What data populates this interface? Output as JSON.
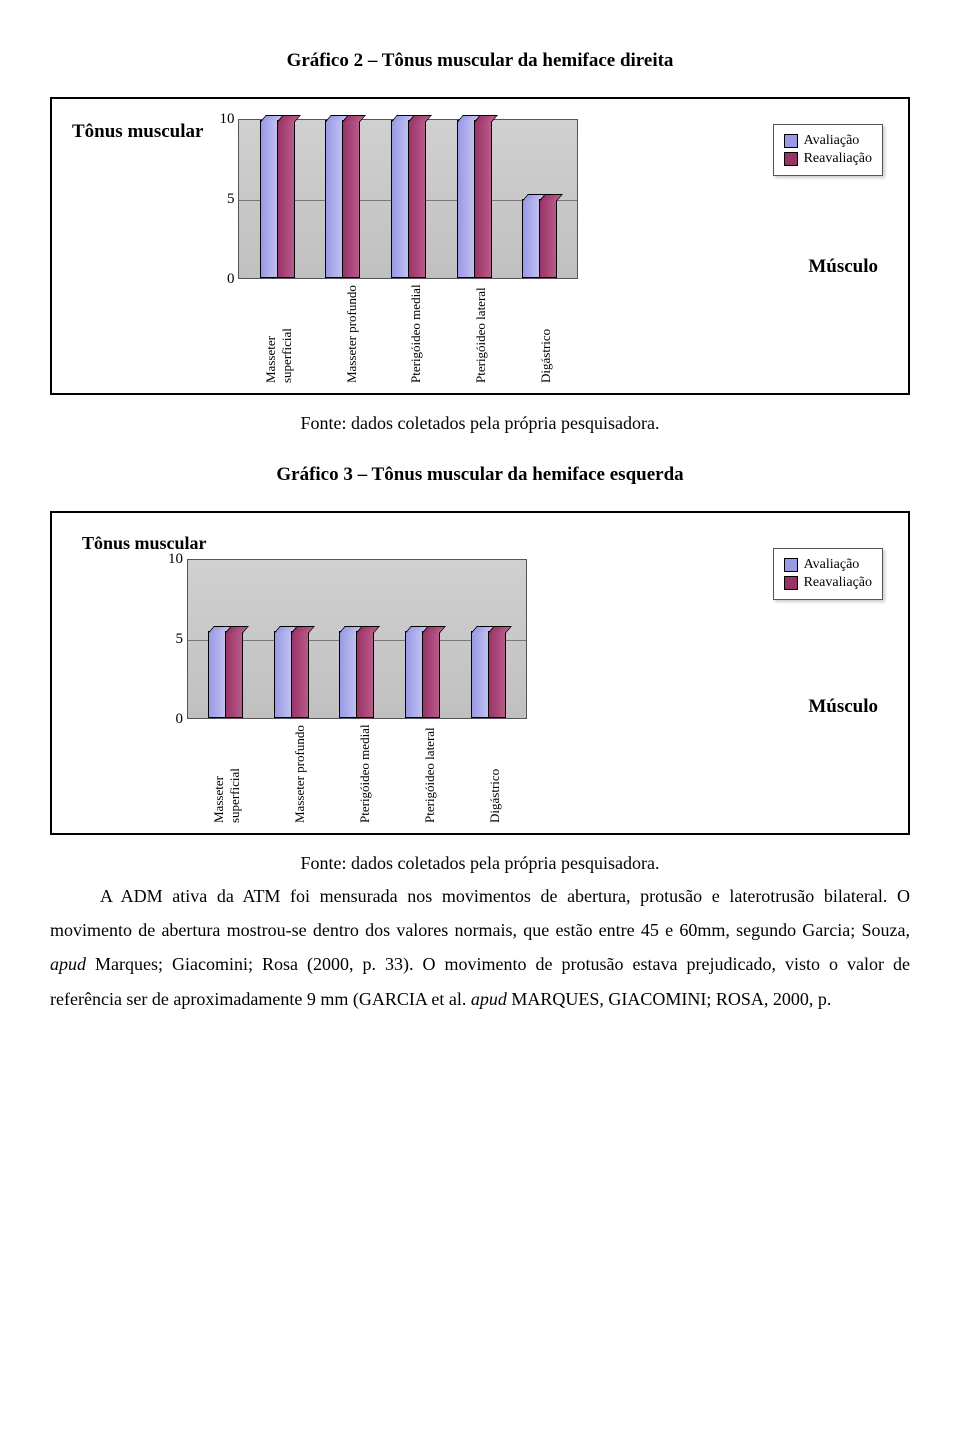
{
  "chart2": {
    "title": "Gráfico 2 – Tônus muscular da hemiface direita",
    "y_title": "Tônus muscular",
    "x_title": "Músculo",
    "type": "bar-3d",
    "y_ticks": [
      "10",
      "5",
      "0"
    ],
    "ylim": [
      0,
      10
    ],
    "categories": [
      "Masseter superficial",
      "Masseter profundo",
      "Pterigóideo medial",
      "Pterigóideo lateral",
      "Digástrico"
    ],
    "series": [
      {
        "name": "Avaliação",
        "color": "#9999e6",
        "values": [
          10,
          10,
          10,
          10,
          5
        ]
      },
      {
        "name": "Reavaliação",
        "color": "#993366",
        "values": [
          10,
          10,
          10,
          10,
          5
        ]
      }
    ],
    "background_color": "#c8c8c8",
    "grid_color": "#888888",
    "fonte": "Fonte: dados coletados pela própria pesquisadora."
  },
  "chart3": {
    "title": "Gráfico 3 – Tônus muscular da hemiface esquerda",
    "y_title": "Tônus muscular",
    "x_title": "Músculo",
    "type": "bar-3d",
    "y_ticks": [
      "10",
      "5",
      "0"
    ],
    "ylim": [
      0,
      10
    ],
    "categories": [
      "Masseter superficial",
      "Masseter profundo",
      "Pterigóideo medial",
      "Pterigóideo lateral",
      "Digástrico"
    ],
    "series": [
      {
        "name": "Avaliação",
        "color": "#9999e6",
        "values": [
          5.5,
          5.5,
          5.5,
          5.5,
          5.5
        ]
      },
      {
        "name": "Reavaliação",
        "color": "#993366",
        "values": [
          5.5,
          5.5,
          5.5,
          5.5,
          5.5
        ]
      }
    ],
    "background_color": "#c8c8c8",
    "grid_color": "#888888",
    "fonte": "Fonte: dados coletados pela própria pesquisadora."
  },
  "paragraph": "A ADM ativa da ATM foi mensurada nos movimentos de abertura, protusão e laterotrusão bilateral. O movimento de abertura mostrou-se dentro dos valores normais, que estão entre 45 e 60mm, segundo Garcia; Souza, apud Marques; Giacomini; Rosa (2000, p. 33). O movimento de protusão estava prejudicado, visto o valor de referência ser de aproximadamente 9 mm (GARCIA et al. apud MARQUES, GIACOMINI; ROSA, 2000, p."
}
